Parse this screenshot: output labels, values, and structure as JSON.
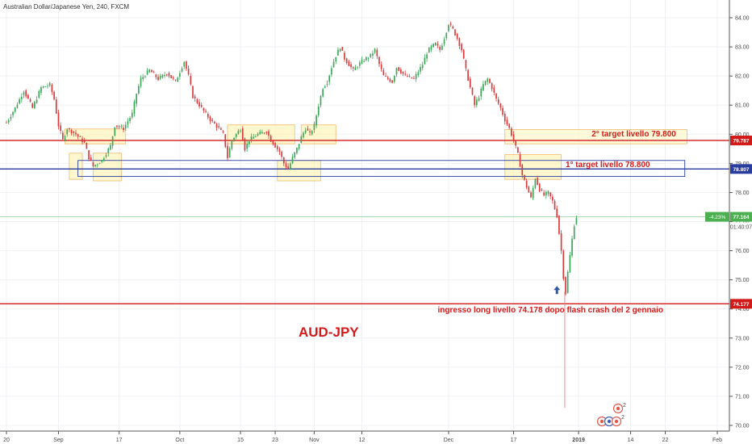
{
  "chart_data": {
    "type": "candlestick",
    "title": "Australian Dollar/Japanese Yen, 240, FXCM",
    "symbol_label": "AUD-JPY",
    "ylim": [
      69.85,
      84.4
    ],
    "y_ticks": [
      "70.00",
      "71.00",
      "72.00",
      "73.00",
      "74.00",
      "75.00",
      "76.00",
      "77.00",
      "78.00",
      "79.00",
      "80.00",
      "81.00",
      "82.00",
      "83.00",
      "84.00"
    ],
    "x_ticks": [
      {
        "label": "20",
        "day": 0
      },
      {
        "label": "Sep",
        "day": 12
      },
      {
        "label": "17",
        "day": 26
      },
      {
        "label": "Oct",
        "day": 40
      },
      {
        "label": "15",
        "day": 54
      },
      {
        "label": "23",
        "day": 62
      },
      {
        "label": "Nov",
        "day": 71
      },
      {
        "label": "12",
        "day": 82
      },
      {
        "label": "Dec",
        "day": 102
      },
      {
        "label": "17",
        "day": 117
      },
      {
        "label": "2019",
        "day": 132
      },
      {
        "label": "14",
        "day": 144
      },
      {
        "label": "22",
        "day": 152
      },
      {
        "label": "Feb",
        "day": 164
      }
    ],
    "x_range_days": [
      -0.5,
      166
    ],
    "price_path": [
      [
        0,
        80.4
      ],
      [
        2,
        80.9
      ],
      [
        4,
        81.5
      ],
      [
        6,
        80.9
      ],
      [
        8,
        81.6
      ],
      [
        10,
        81.7
      ],
      [
        11,
        81.2
      ],
      [
        12,
        80.3
      ],
      [
        13,
        79.8
      ],
      [
        14,
        80.2
      ],
      [
        16,
        80.0
      ],
      [
        18,
        79.7
      ],
      [
        19,
        79.2
      ],
      [
        20,
        78.9
      ],
      [
        22,
        79.1
      ],
      [
        24,
        79.6
      ],
      [
        25,
        80.3
      ],
      [
        27,
        80.2
      ],
      [
        29,
        80.7
      ],
      [
        30,
        81.4
      ],
      [
        31,
        81.9
      ],
      [
        33,
        82.2
      ],
      [
        35,
        81.9
      ],
      [
        37,
        82.1
      ],
      [
        39,
        81.8
      ],
      [
        41,
        82.5
      ],
      [
        42,
        82.0
      ],
      [
        43,
        81.3
      ],
      [
        45,
        80.9
      ],
      [
        47,
        80.5
      ],
      [
        49,
        80.2
      ],
      [
        50,
        80.0
      ],
      [
        51,
        79.2
      ],
      [
        52,
        79.8
      ],
      [
        54,
        80.2
      ],
      [
        55,
        79.5
      ],
      [
        56,
        79.8
      ],
      [
        58,
        80.0
      ],
      [
        60,
        80.1
      ],
      [
        61,
        79.8
      ],
      [
        62,
        79.6
      ],
      [
        63,
        79.4
      ],
      [
        64,
        79.0
      ],
      [
        65,
        78.8
      ],
      [
        66,
        79.2
      ],
      [
        67,
        79.5
      ],
      [
        68,
        79.9
      ],
      [
        69,
        80.2
      ],
      [
        70,
        80.0
      ],
      [
        71,
        80.3
      ],
      [
        72,
        81.0
      ],
      [
        73,
        81.6
      ],
      [
        74,
        81.8
      ],
      [
        75,
        82.3
      ],
      [
        76,
        82.7
      ],
      [
        77,
        83.0
      ],
      [
        78,
        82.6
      ],
      [
        80,
        82.2
      ],
      [
        82,
        82.5
      ],
      [
        84,
        82.7
      ],
      [
        85,
        82.9
      ],
      [
        86,
        82.4
      ],
      [
        87,
        82.0
      ],
      [
        89,
        81.8
      ],
      [
        90,
        82.3
      ],
      [
        92,
        82.0
      ],
      [
        94,
        81.9
      ],
      [
        96,
        82.4
      ],
      [
        97,
        82.8
      ],
      [
        98,
        83.0
      ],
      [
        99,
        83.1
      ],
      [
        100,
        82.9
      ],
      [
        101,
        83.3
      ],
      [
        102,
        83.8
      ],
      [
        103,
        83.6
      ],
      [
        104,
        83.3
      ],
      [
        105,
        82.9
      ],
      [
        106,
        82.2
      ],
      [
        107,
        81.6
      ],
      [
        108,
        81.0
      ],
      [
        109,
        81.3
      ],
      [
        110,
        81.7
      ],
      [
        111,
        81.9
      ],
      [
        112,
        81.6
      ],
      [
        113,
        81.2
      ],
      [
        114,
        80.9
      ],
      [
        115,
        80.5
      ],
      [
        116,
        80.2
      ],
      [
        117,
        79.8
      ],
      [
        118,
        79.3
      ],
      [
        119,
        78.6
      ],
      [
        120,
        78.2
      ],
      [
        121,
        77.8
      ],
      [
        122,
        78.5
      ],
      [
        123,
        78.1
      ],
      [
        124,
        77.9
      ],
      [
        125,
        78.0
      ],
      [
        126,
        77.7
      ],
      [
        127,
        77.2
      ],
      [
        127.5,
        76.6
      ],
      [
        128,
        76.0
      ],
      [
        128.4,
        75.4
      ],
      [
        128.8,
        74.2
      ],
      [
        129.2,
        74.9
      ],
      [
        129.8,
        75.6
      ],
      [
        130.4,
        76.3
      ],
      [
        131,
        76.9
      ],
      [
        131.5,
        77.16
      ]
    ],
    "flash_wick": {
      "day": 128.8,
      "low": 70.6
    },
    "horizontal_lines": [
      {
        "price": 79.787,
        "label": "79.787",
        "color": "#d21a1a"
      },
      {
        "price": 78.807,
        "label": "78.807",
        "color": "#2a3d9e"
      },
      {
        "price": 74.177,
        "label": "74.177",
        "color": "#d21a1a"
      }
    ],
    "current_price": {
      "price": 77.164,
      "label": "77.164",
      "change": "-4.23%",
      "countdown": "01:40:07",
      "color": "#4caf50"
    },
    "zones": [
      {
        "x0": 13.5,
        "x1": 27.5,
        "y0": 79.67,
        "y1": 80.18
      },
      {
        "x0": 51,
        "x1": 66.5,
        "y0": 79.67,
        "y1": 80.32
      },
      {
        "x0": 68,
        "x1": 76,
        "y0": 79.67,
        "y1": 80.32
      },
      {
        "x0": 14.5,
        "x1": 17.5,
        "y0": 78.45,
        "y1": 79.35
      },
      {
        "x0": 20,
        "x1": 26.5,
        "y0": 78.4,
        "y1": 79.35
      },
      {
        "x0": 62.5,
        "x1": 72.5,
        "y0": 78.4,
        "y1": 79.1
      },
      {
        "x0": 115,
        "x1": 128,
        "y0": 78.45,
        "y1": 79.3
      }
    ],
    "wide_zone": {
      "x0": 115,
      "x1": 157,
      "y0": 79.67,
      "y1": 80.16
    },
    "blue_box": {
      "x0": 16.5,
      "x1": 156.5,
      "y0": 78.55,
      "y1": 79.1
    },
    "annotations": [
      {
        "text": "2° target livello 79.800",
        "day": 135,
        "price": 79.93,
        "color": "#d21a1a"
      },
      {
        "text": "1° target livello 78.800",
        "day": 129,
        "price": 78.87,
        "color": "#d21a1a"
      },
      {
        "text": "ingresso long livello 74.178 dopo flash crash del 2 gennaio",
        "day": 99.5,
        "price": 73.88,
        "color": "#d21a1a"
      }
    ],
    "arrow_marker": {
      "day": 127,
      "price": 74.65,
      "color": "#2f5aa8"
    },
    "event_badges": {
      "count_top": "2",
      "count_bottom": "2"
    }
  }
}
